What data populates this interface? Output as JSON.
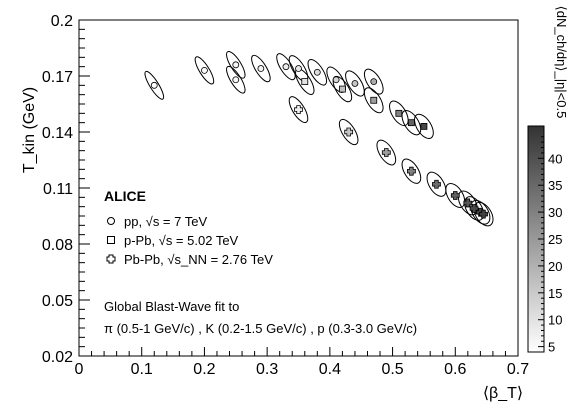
{
  "chart_data": {
    "type": "scatter",
    "title": "",
    "xlabel": "⟨β_T⟩",
    "ylabel": "T_kin (GeV)",
    "xlim": [
      0,
      0.7
    ],
    "ylim": [
      0.02,
      0.2
    ],
    "xticks": [
      0,
      0.1,
      0.2,
      0.3,
      0.4,
      0.5,
      0.6,
      0.7
    ],
    "yticks": [
      0.02,
      0.05,
      0.08,
      0.11,
      0.14,
      0.17,
      0.2
    ],
    "xtick_labels": [
      "0",
      "0.1",
      "0.2",
      "0.3",
      "0.4",
      "0.5",
      "0.6",
      "0.7"
    ],
    "ytick_labels": [
      "0.02",
      "0.05",
      "0.08",
      "0.11",
      "0.14",
      "0.17",
      "0.2"
    ],
    "grid": false,
    "legend_position": "left",
    "colorbar": {
      "title": "⟨dN_ch/dη⟩_|η|<0.5",
      "range": [
        4,
        46
      ],
      "ticks": [
        5,
        10,
        15,
        20,
        25,
        30,
        35,
        40
      ],
      "tick_labels": [
        "5",
        "10",
        "15",
        "20",
        "25",
        "30",
        "35",
        "40"
      ]
    },
    "legend": {
      "header": "ALICE",
      "entries": [
        {
          "marker": "circle",
          "label": "pp, √s = 7 TeV"
        },
        {
          "marker": "square",
          "label": "p-Pb, √s = 5.02 TeV"
        },
        {
          "marker": "cross",
          "label": "Pb-Pb, √s_NN = 2.76 TeV"
        }
      ]
    },
    "annotation": {
      "line1": "Global Blast-Wave fit to",
      "line2": "π (0.5-1 GeV/c) , K (0.2-1.5 GeV/c) , p (0.3-3.0 GeV/c)"
    },
    "series": [
      {
        "name": "pp, √s = 7 TeV",
        "marker": "circle",
        "points": [
          {
            "x": 0.12,
            "y": 0.165,
            "mult": 4
          },
          {
            "x": 0.2,
            "y": 0.173,
            "mult": 5
          },
          {
            "x": 0.25,
            "y": 0.176,
            "mult": 6
          },
          {
            "x": 0.25,
            "y": 0.168,
            "mult": 6
          },
          {
            "x": 0.29,
            "y": 0.174,
            "mult": 7
          },
          {
            "x": 0.33,
            "y": 0.175,
            "mult": 8
          },
          {
            "x": 0.35,
            "y": 0.174,
            "mult": 9
          },
          {
            "x": 0.38,
            "y": 0.172,
            "mult": 11
          },
          {
            "x": 0.41,
            "y": 0.168,
            "mult": 13
          },
          {
            "x": 0.44,
            "y": 0.166,
            "mult": 16
          },
          {
            "x": 0.47,
            "y": 0.167,
            "mult": 21
          }
        ]
      },
      {
        "name": "p-Pb, √s = 5.02 TeV",
        "marker": "square",
        "points": [
          {
            "x": 0.36,
            "y": 0.167,
            "mult": 10
          },
          {
            "x": 0.42,
            "y": 0.163,
            "mult": 17
          },
          {
            "x": 0.47,
            "y": 0.157,
            "mult": 24
          },
          {
            "x": 0.51,
            "y": 0.15,
            "mult": 30
          },
          {
            "x": 0.53,
            "y": 0.145,
            "mult": 36
          },
          {
            "x": 0.55,
            "y": 0.143,
            "mult": 42
          }
        ]
      },
      {
        "name": "Pb-Pb, √s_NN = 2.76 TeV",
        "marker": "cross",
        "points": [
          {
            "x": 0.35,
            "y": 0.152,
            "mult": 8
          },
          {
            "x": 0.43,
            "y": 0.14,
            "mult": 16
          },
          {
            "x": 0.49,
            "y": 0.129,
            "mult": 24
          },
          {
            "x": 0.53,
            "y": 0.119,
            "mult": 30
          },
          {
            "x": 0.57,
            "y": 0.112,
            "mult": 34
          },
          {
            "x": 0.6,
            "y": 0.106,
            "mult": 37
          },
          {
            "x": 0.62,
            "y": 0.102,
            "mult": 39
          },
          {
            "x": 0.63,
            "y": 0.099,
            "mult": 41
          },
          {
            "x": 0.64,
            "y": 0.097,
            "mult": 42
          },
          {
            "x": 0.645,
            "y": 0.096,
            "mult": 43
          }
        ]
      }
    ]
  }
}
